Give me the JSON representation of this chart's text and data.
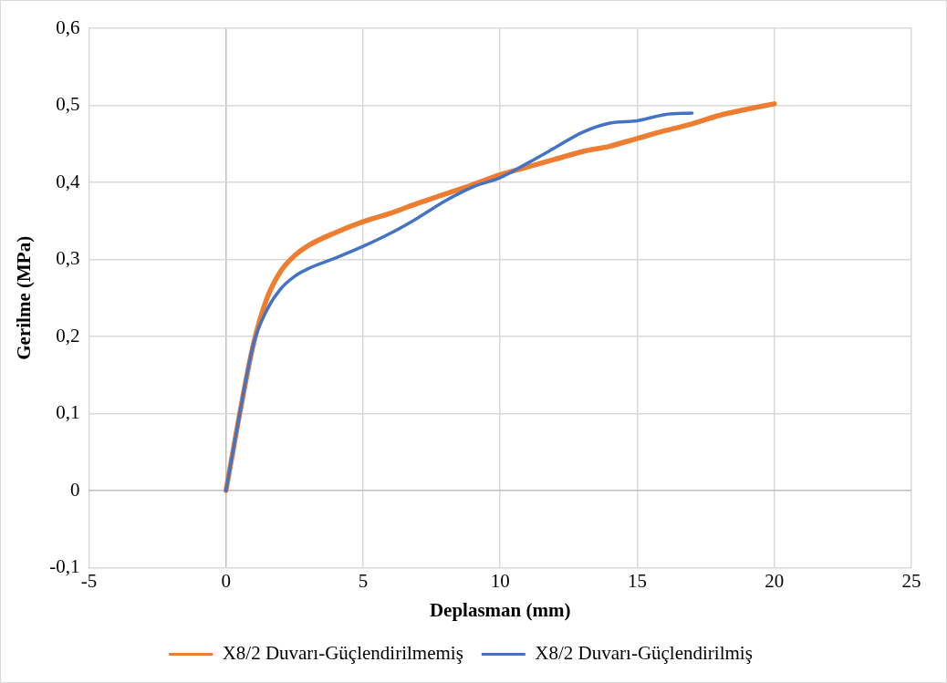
{
  "chart_data": {
    "type": "line",
    "xlabel": "Deplasman (mm)",
    "ylabel": "Gerilme (MPa)",
    "xlim": [
      -5,
      25
    ],
    "xticks": [
      -5,
      0,
      5,
      10,
      15,
      20,
      25
    ],
    "ylim": [
      -0.1,
      0.6
    ],
    "yticks": [
      {
        "value": -0.1,
        "label": "-0,1"
      },
      0,
      {
        "value": 0.1,
        "label": "0,1"
      },
      {
        "value": 0.2,
        "label": "0,2"
      },
      {
        "value": 0.3,
        "label": "0,3"
      },
      {
        "value": 0.4,
        "label": "0,4"
      },
      {
        "value": 0.5,
        "label": "0,5"
      },
      {
        "value": 0.6,
        "label": "0,6"
      }
    ],
    "grid": true,
    "legend": "bottom",
    "marker": "none",
    "line_style": "solid",
    "series": [
      {
        "name": "X8/2 Duvarı-Güçlendirilmemiş",
        "color": "#ed7d31",
        "x": [
          0,
          0.5,
          1,
          1.5,
          2,
          2.5,
          3,
          4,
          5,
          6,
          7,
          8,
          9,
          10,
          11,
          12,
          13,
          14,
          15,
          16,
          17,
          18,
          19,
          20
        ],
        "values": [
          0,
          0.1,
          0.19,
          0.25,
          0.285,
          0.305,
          0.318,
          0.335,
          0.349,
          0.36,
          0.373,
          0.385,
          0.397,
          0.41,
          0.42,
          0.43,
          0.44,
          0.447,
          0.457,
          0.467,
          0.476,
          0.487,
          0.495,
          0.502
        ]
      },
      {
        "name": "X8/2 Duvarı-Güçlendirilmiş",
        "color": "#4472c4",
        "x": [
          0,
          0.5,
          1,
          1.5,
          2,
          2.5,
          3,
          4,
          5,
          6,
          7,
          8,
          9,
          10,
          11,
          12,
          13,
          14,
          15,
          15.5,
          16,
          17
        ],
        "values": [
          0,
          0.1,
          0.19,
          0.235,
          0.262,
          0.278,
          0.288,
          0.302,
          0.317,
          0.334,
          0.354,
          0.376,
          0.394,
          0.406,
          0.425,
          0.445,
          0.465,
          0.477,
          0.48,
          0.484,
          0.488,
          0.49
        ]
      }
    ]
  }
}
